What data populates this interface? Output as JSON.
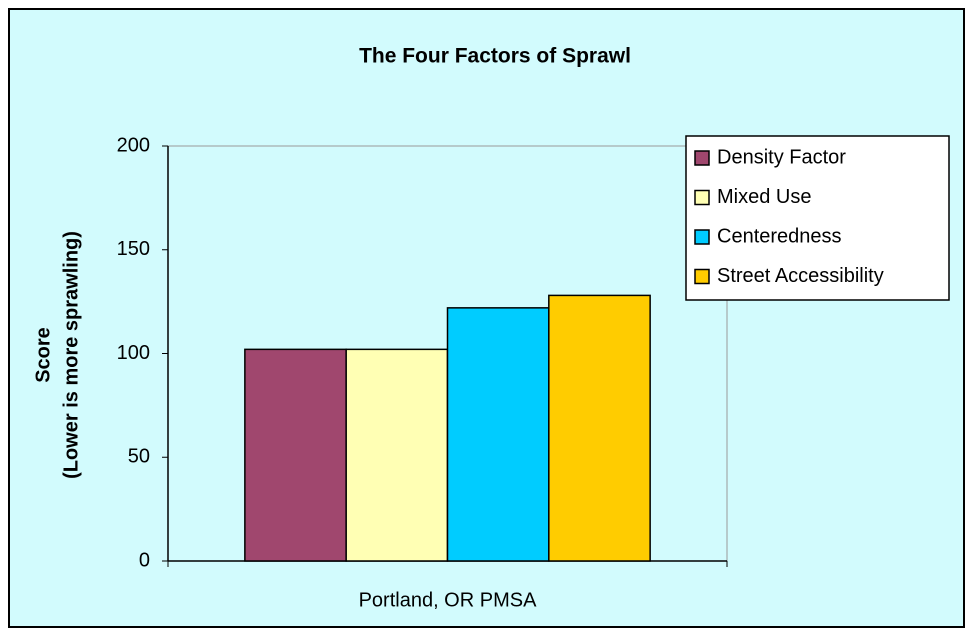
{
  "chart_data": {
    "type": "bar",
    "title": "The Four Factors of Sprawl",
    "ylabel": [
      "Score",
      "(Lower is more sprawling)"
    ],
    "categories": [
      "Portland, OR PMSA"
    ],
    "series": [
      {
        "name": "Density Factor",
        "color": "#a0476e",
        "values": [
          102
        ]
      },
      {
        "name": "Mixed Use",
        "color": "#ffffb4",
        "values": [
          102
        ]
      },
      {
        "name": "Centeredness",
        "color": "#00ccff",
        "values": [
          122
        ]
      },
      {
        "name": "Street Accessibility",
        "color": "#ffcc00",
        "values": [
          128
        ]
      }
    ],
    "ylim": [
      0,
      200
    ],
    "yticks": [
      0,
      50,
      100,
      150,
      200
    ],
    "grid": false,
    "legend": "right"
  }
}
